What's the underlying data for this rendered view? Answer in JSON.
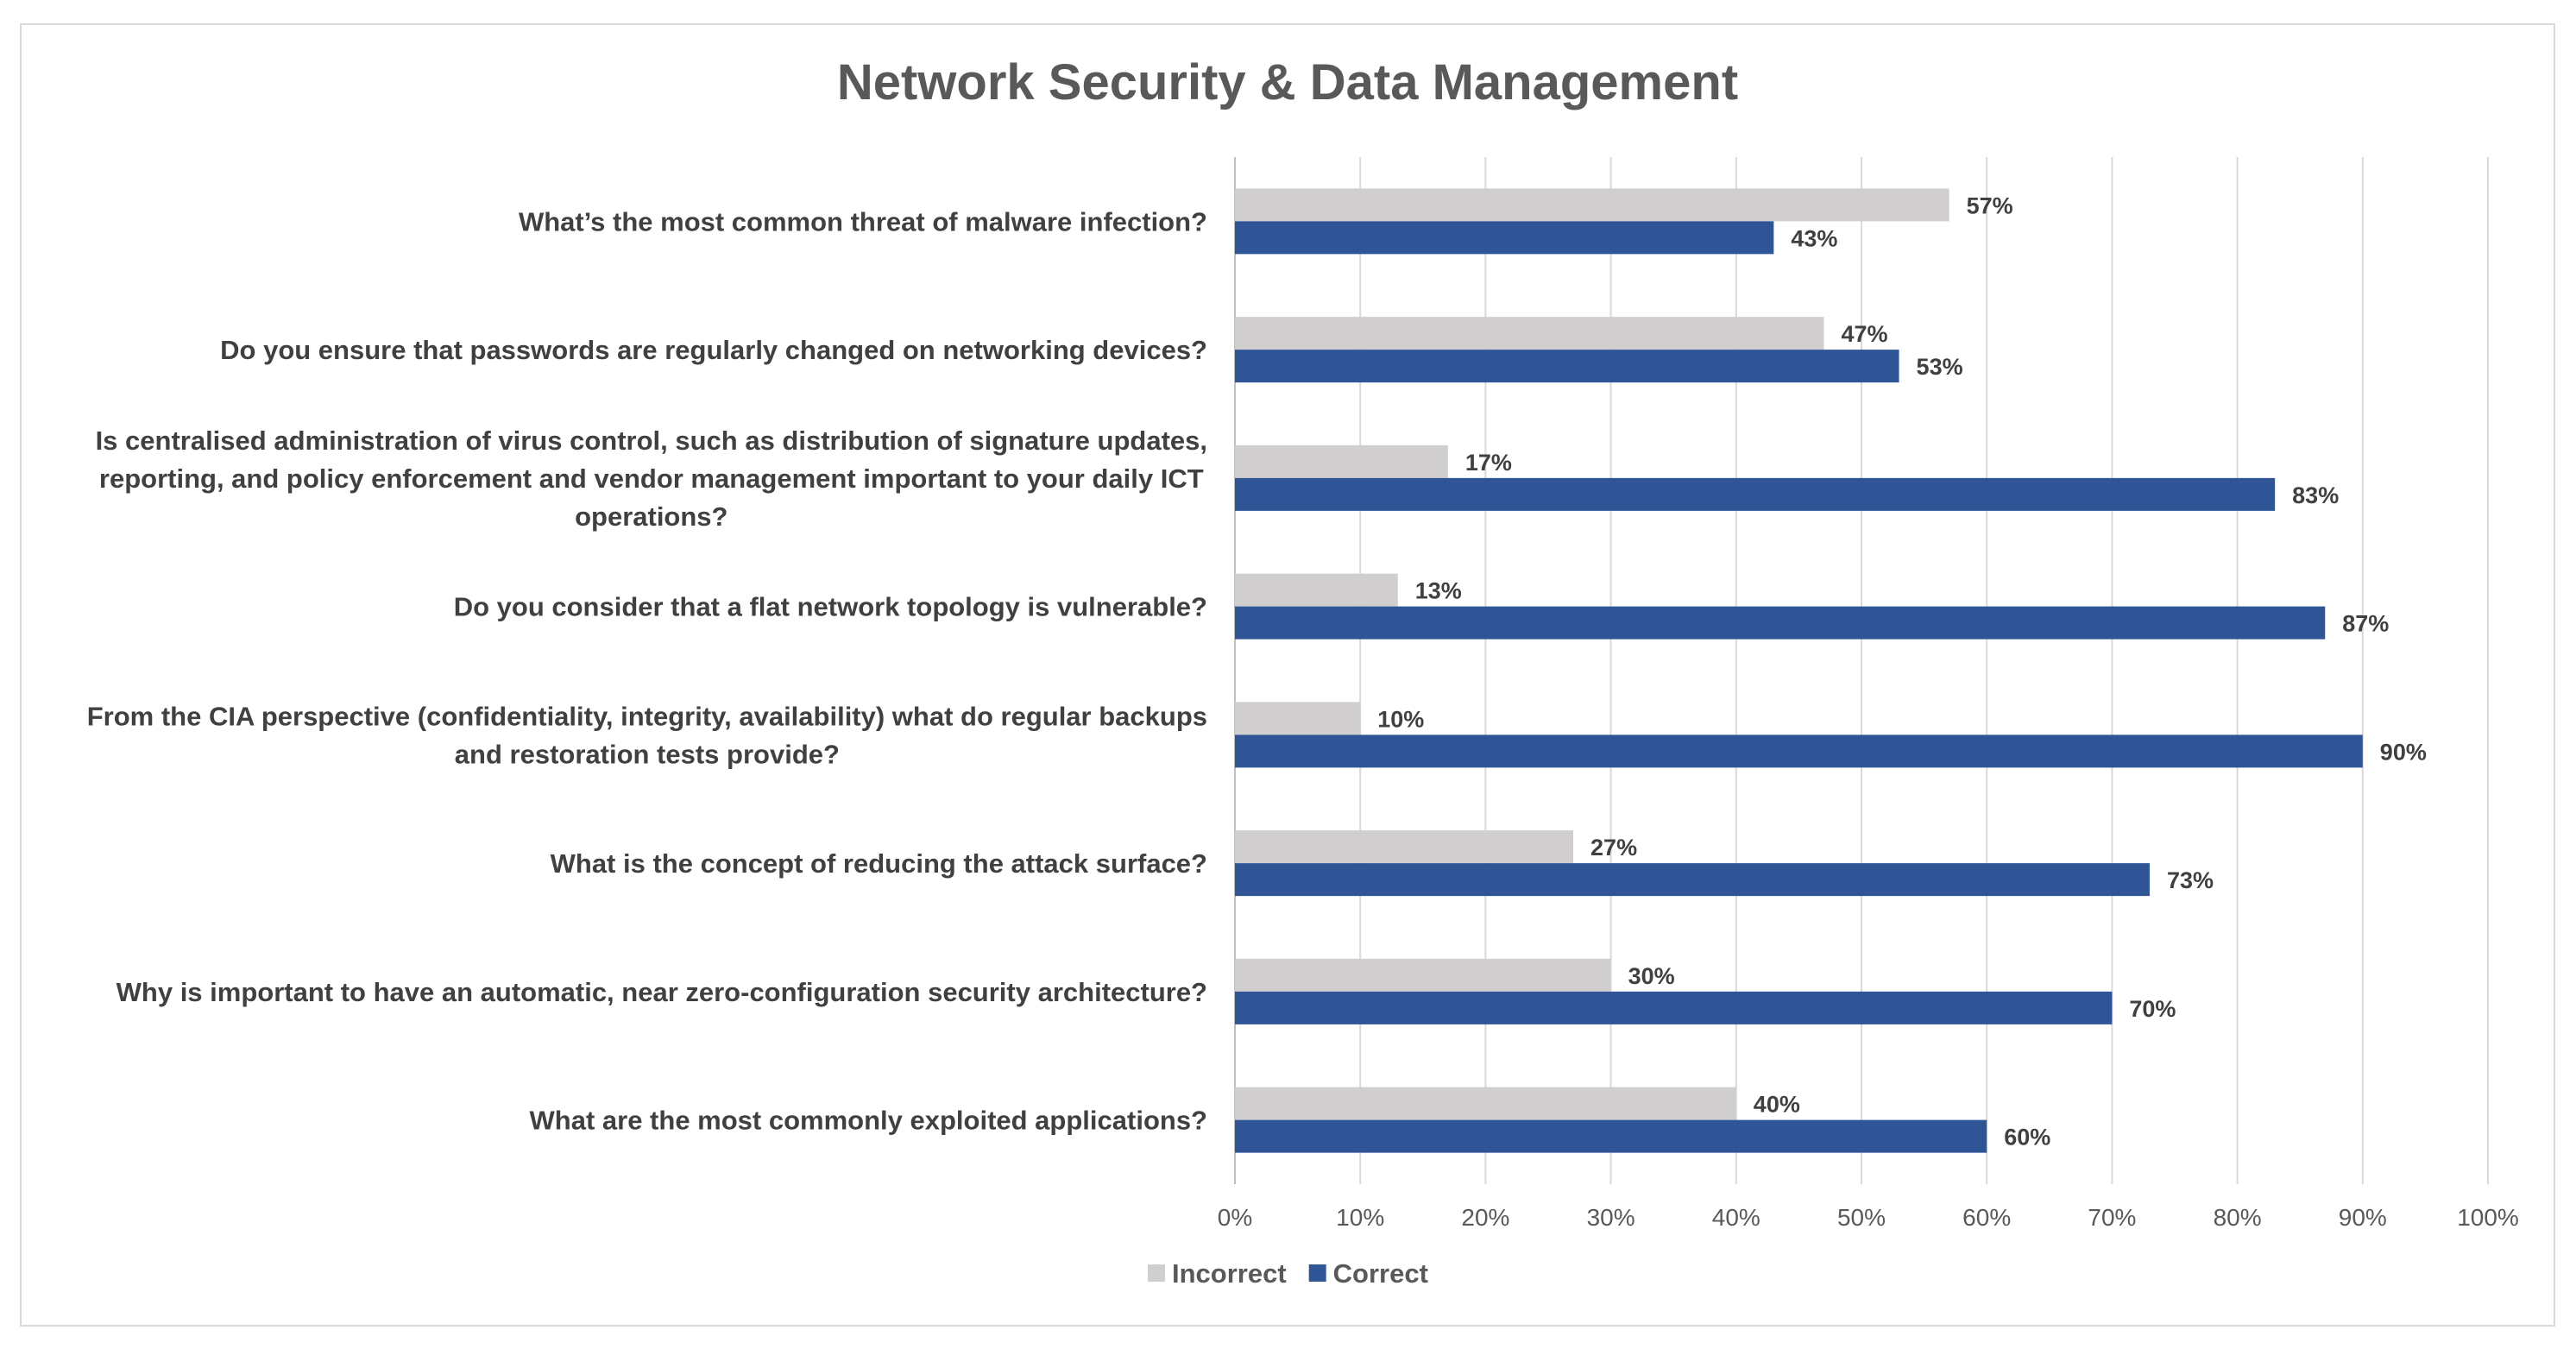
{
  "chart_data": {
    "type": "bar",
    "orientation": "horizontal",
    "title": "Network Security & Data Management",
    "xlabel": "",
    "ylabel": "",
    "xlim": [
      0,
      100
    ],
    "tick_values": [
      0,
      10,
      20,
      30,
      40,
      50,
      60,
      70,
      80,
      90,
      100
    ],
    "tick_labels": [
      "0%",
      "10%",
      "20%",
      "30%",
      "40%",
      "50%",
      "60%",
      "70%",
      "80%",
      "90%",
      "100%"
    ],
    "grid": true,
    "legend_position": "bottom",
    "categories": [
      [
        "What’s the most common threat of malware infection?"
      ],
      [
        "Do you ensure that passwords are regularly changed on networking devices?"
      ],
      [
        "Is centralised administration of virus control, such as distribution of signature updates,",
        "reporting, and policy enforcement and vendor management important to your daily ICT",
        "operations?"
      ],
      [
        "Do you consider that a flat network topology is vulnerable?"
      ],
      [
        "From the CIA perspective (confidentiality, integrity, availability) what do regular backups",
        "and restoration tests provide?"
      ],
      [
        "What is the concept of reducing the attack surface?"
      ],
      [
        "Why is important to have an automatic, near zero-configuration security architecture?"
      ],
      [
        "What are the most commonly exploited applications?"
      ]
    ],
    "series": [
      {
        "name": "Incorrect",
        "color": "#d0cece",
        "values": [
          57,
          47,
          17,
          13,
          10,
          27,
          30,
          40
        ],
        "labels": [
          "57%",
          "47%",
          "17%",
          "13%",
          "10%",
          "27%",
          "30%",
          "40%"
        ]
      },
      {
        "name": "Correct",
        "color": "#2f5597",
        "values": [
          43,
          53,
          83,
          87,
          90,
          73,
          70,
          60
        ],
        "labels": [
          "43%",
          "53%",
          "83%",
          "87%",
          "90%",
          "73%",
          "70%",
          "60%"
        ]
      }
    ]
  }
}
